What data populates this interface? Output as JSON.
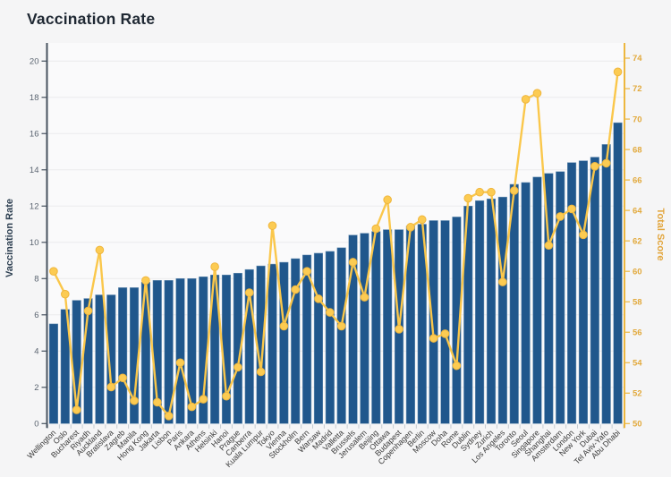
{
  "header": {
    "title": "Vaccination Rate"
  },
  "chart_data": {
    "type": "bar",
    "title": "Vaccination Rate",
    "grid": true,
    "legend": "none",
    "categories": [
      "Wellington",
      "Oslo",
      "Bucharest",
      "Riyadh",
      "Auckland",
      "Bratislava",
      "Zagreb",
      "Manila",
      "Hong Kong",
      "Jakarta",
      "Lisbon",
      "Paris",
      "Ankara",
      "Athens",
      "Helsinki",
      "Hanoi",
      "Prague",
      "Canberra",
      "Kuala Lumpur",
      "Tokyo",
      "Vienna",
      "Stockholm",
      "Bern",
      "Warsaw",
      "Madrid",
      "Valletta",
      "Brussels",
      "Jerusalem",
      "Beijing",
      "Ottawa",
      "Budapest",
      "Copenhagen",
      "Berlin",
      "Moscow",
      "Doha",
      "Rome",
      "Dublin",
      "Sydney",
      "Zurich",
      "Los Angeles",
      "Toronto",
      "Seoul",
      "Singapore",
      "Shanghai",
      "Amsterdam",
      "London",
      "New York",
      "Dubai",
      "Tel Aviv-Yafo",
      "Abu Dhabi"
    ],
    "series": [
      {
        "name": "Vaccination Rate",
        "type": "bar",
        "axis": "left",
        "values": [
          5.5,
          6.3,
          6.8,
          6.9,
          7.1,
          7.1,
          7.5,
          7.5,
          7.8,
          7.9,
          7.9,
          8.0,
          8.0,
          8.1,
          8.2,
          8.2,
          8.3,
          8.5,
          8.7,
          8.8,
          8.9,
          9.1,
          9.3,
          9.4,
          9.5,
          9.7,
          10.4,
          10.5,
          10.6,
          10.7,
          10.7,
          10.9,
          11.0,
          11.2,
          11.2,
          11.4,
          12.0,
          12.3,
          12.4,
          12.5,
          13.2,
          13.3,
          13.6,
          13.8,
          13.9,
          14.4,
          14.5,
          14.7,
          15.4,
          16.6
        ]
      },
      {
        "name": "Total Score",
        "type": "line",
        "axis": "right",
        "values": [
          60.0,
          58.5,
          50.9,
          57.4,
          61.4,
          52.4,
          53.0,
          51.5,
          59.4,
          51.4,
          50.5,
          54.0,
          51.1,
          51.6,
          60.3,
          51.8,
          53.7,
          58.6,
          53.4,
          63.0,
          56.4,
          58.8,
          60.0,
          58.2,
          57.3,
          56.4,
          60.6,
          58.3,
          62.8,
          64.7,
          56.2,
          62.9,
          63.4,
          55.6,
          55.9,
          53.8,
          64.8,
          65.2,
          65.2,
          59.3,
          65.3,
          71.3,
          71.7,
          61.7,
          63.6,
          64.1,
          62.4,
          66.9,
          67.1,
          73.1
        ]
      }
    ],
    "left_axis": {
      "label": "Vaccination Rate",
      "min": 0,
      "max": 21,
      "ticks": [
        0,
        2,
        4,
        6,
        8,
        10,
        12,
        14,
        16,
        18,
        20
      ]
    },
    "right_axis": {
      "label": "Total Score",
      "min": 50,
      "max": 75,
      "ticks": [
        50,
        52,
        54,
        56,
        58,
        60,
        62,
        64,
        66,
        68,
        70,
        72,
        74
      ]
    },
    "colors": {
      "bar": "#20578c",
      "bar_edge": "#6c93b5",
      "line": "#FAC74B",
      "point_fill": "#FCCB52",
      "point_stroke": "#EFB63E",
      "left_axis": "#47525F",
      "left_tick_label": "#5A6470",
      "left_axis_title": "#2C3E50",
      "right_axis": "#EDB73F",
      "right_tick_label": "#E2A93C",
      "right_axis_title": "#E2A53C",
      "grid": "#ebebed",
      "plot_bg": "#fafafb",
      "page_bg": "#f5f5f6",
      "category_label": "#3b3b3b",
      "x_tick": "#c6ccd2",
      "title": "#1f2833"
    }
  }
}
